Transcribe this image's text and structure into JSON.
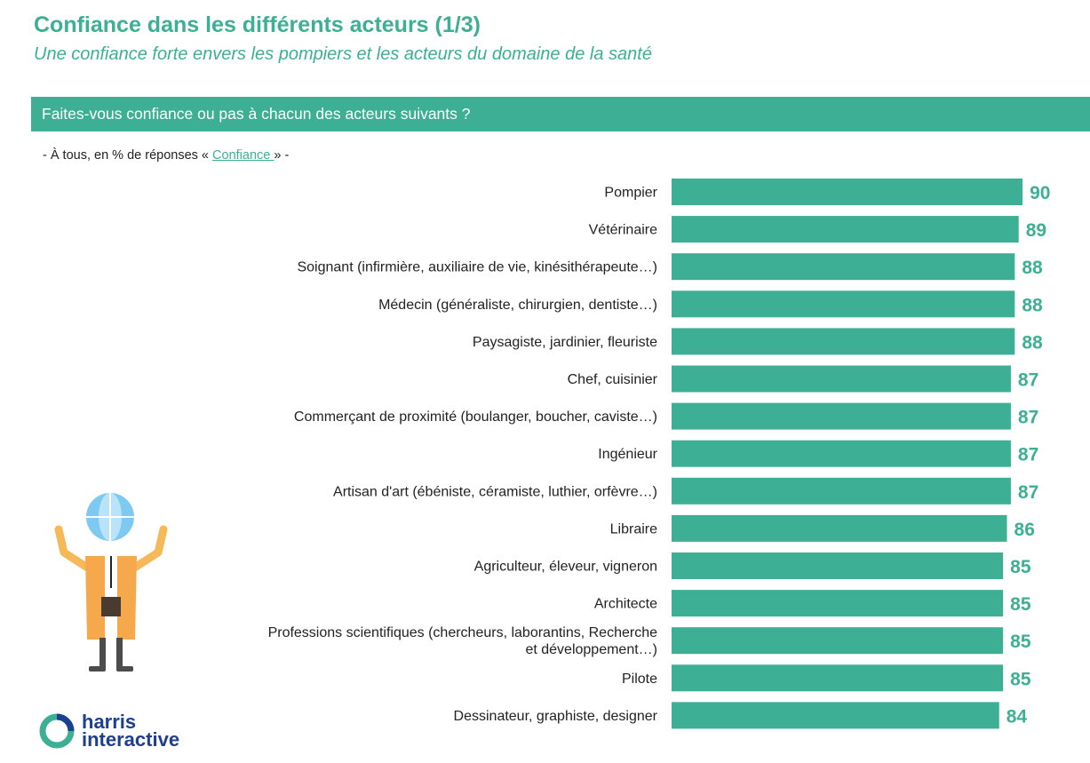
{
  "header": {
    "title": "Confiance dans les différents acteurs (1/3)",
    "subtitle": "Une confiance forte envers les pompiers et les acteurs du domaine de la santé"
  },
  "question": "Faites-vous confiance ou pas à chacun des acteurs suivants ?",
  "base_note": {
    "prefix": "- À tous, en % de réponses « ",
    "link": "Confiance ",
    "suffix": "» -"
  },
  "brand": {
    "line1": "harris",
    "line2": "interactive"
  },
  "colors": {
    "accent": "#3daf94",
    "bar": "#3daf94",
    "value_label": "#3daf94",
    "brand_blue": "#1c3f8f"
  },
  "chart_data": {
    "type": "bar",
    "orientation": "horizontal",
    "categories": [
      [
        "Pompier"
      ],
      [
        "Vétérinaire"
      ],
      [
        "Soignant (infirmière, auxiliaire de vie, kinésithérapeute…)"
      ],
      [
        "Médecin (généraliste, chirurgien, dentiste…)"
      ],
      [
        "Paysagiste, jardinier, fleuriste"
      ],
      [
        "Chef, cuisinier"
      ],
      [
        "Commerçant de proximité (boulanger, boucher, caviste…)"
      ],
      [
        "Ingénieur"
      ],
      [
        "Artisan d'art (ébéniste, céramiste, luthier, orfèvre…)"
      ],
      [
        "Libraire"
      ],
      [
        "Agriculteur, éleveur, vigneron"
      ],
      [
        "Architecte"
      ],
      [
        "Professions scientifiques (chercheurs, laborantins, Recherche",
        "et développement…)"
      ],
      [
        "Pilote"
      ],
      [
        "Dessinateur, graphiste, designer"
      ]
    ],
    "values": [
      90,
      89,
      88,
      88,
      88,
      87,
      87,
      87,
      87,
      86,
      85,
      85,
      85,
      85,
      84
    ],
    "value_labels_shown": true,
    "xlim": [
      0,
      100
    ],
    "grid": false,
    "legend": false
  }
}
